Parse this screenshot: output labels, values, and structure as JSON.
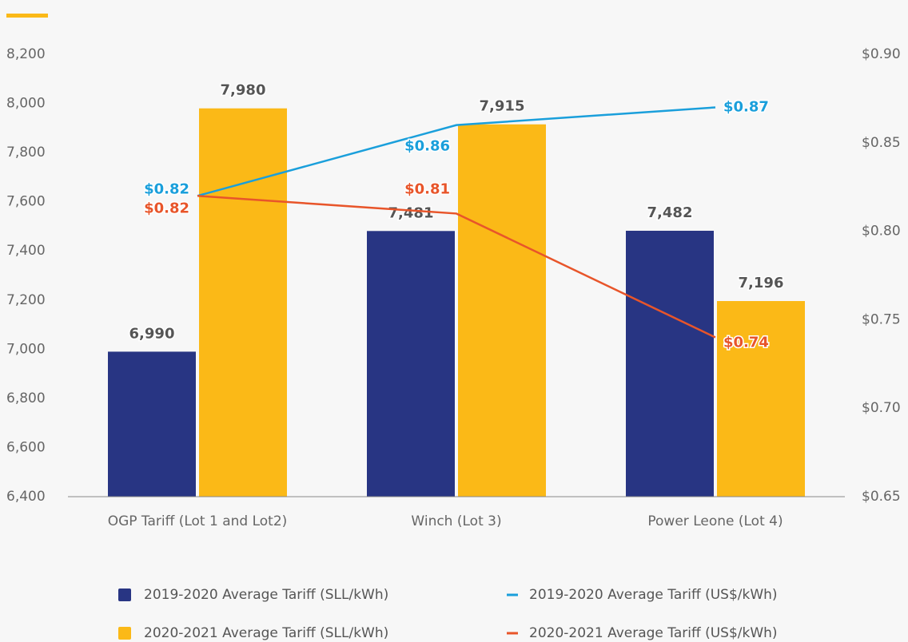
{
  "chart_data": {
    "type": "bar",
    "categories": [
      "OGP Tariff (Lot 1 and Lot2)",
      "Winch (Lot 3)",
      "Power Leone (Lot 4)"
    ],
    "series": [
      {
        "name": "2019-2020 Average Tariff (SLL/kWh)",
        "color": "#283583",
        "values": [
          6990,
          7481,
          7482
        ],
        "value_labels": [
          "6,990",
          "7,481",
          "7,482"
        ]
      },
      {
        "name": "2020-2021 Average Tariff (SLL/kWh)",
        "color": "#fbb917",
        "values": [
          7980,
          7915,
          7196
        ],
        "value_labels": [
          "7,980",
          "7,915",
          "7,196"
        ]
      },
      {
        "name": "2019-2020 Average Tariff (US$/kWh)",
        "color": "#1a9fdb",
        "type": "line",
        "axis": "y2",
        "values": [
          0.82,
          0.86,
          0.87
        ],
        "value_labels": [
          "$0.82",
          "$0.86",
          "$0.87"
        ]
      },
      {
        "name": "2020-2021 Average Tariff (US$/kWh)",
        "color": "#e8552a",
        "type": "line",
        "axis": "y2",
        "values": [
          0.82,
          0.81,
          0.74
        ],
        "value_labels": [
          "$0.82",
          "$0.81",
          "$0.74"
        ]
      }
    ],
    "ylim": [
      6400,
      8200
    ],
    "yticks": [
      {
        "value": 6400,
        "label": "6,400"
      },
      {
        "value": 6600,
        "label": "6,600"
      },
      {
        "value": 6800,
        "label": "6,800"
      },
      {
        "value": 7000,
        "label": "7,000"
      },
      {
        "value": 7200,
        "label": "7,200"
      },
      {
        "value": 7400,
        "label": "7,400"
      },
      {
        "value": 7600,
        "label": "7,600"
      },
      {
        "value": 7800,
        "label": "7,800"
      },
      {
        "value": 8000,
        "label": "8,000"
      },
      {
        "value": 8200,
        "label": "8,200"
      }
    ],
    "y2lim": [
      0.65,
      0.9
    ],
    "y2ticks": [
      {
        "value": 0.65,
        "label": "$0.65"
      },
      {
        "value": 0.7,
        "label": "$0.70"
      },
      {
        "value": 0.75,
        "label": "$0.75"
      },
      {
        "value": 0.8,
        "label": "$0.80"
      },
      {
        "value": 0.85,
        "label": "$0.85"
      },
      {
        "value": 0.9,
        "label": "$0.90"
      }
    ]
  }
}
